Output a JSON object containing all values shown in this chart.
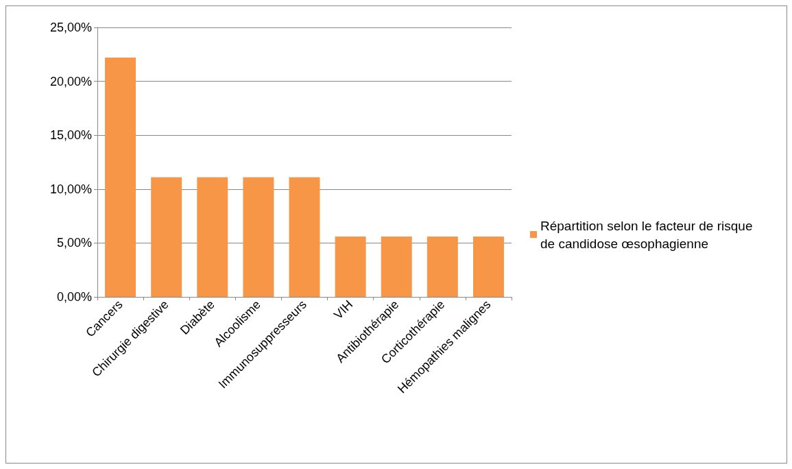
{
  "chart_data": {
    "type": "bar",
    "categories": [
      "Cancers",
      "Chirurgie digestive",
      "Diabète",
      "Alcoolisme",
      "Immunosuppresseurs",
      "VIH",
      "Antibiothérapie",
      "Corticothérapie",
      "Hémopathies malignes"
    ],
    "series": [
      {
        "name": "Répartition selon le facteur de risque de candidose œsophagienne",
        "color": "#f79646",
        "values": [
          22.2,
          11.1,
          11.1,
          11.1,
          11.1,
          5.6,
          5.6,
          5.6,
          5.6
        ]
      }
    ],
    "ylim": [
      0,
      25
    ],
    "yticks": [
      {
        "value": 0,
        "label": "0,00%"
      },
      {
        "value": 5,
        "label": "5,00%"
      },
      {
        "value": 10,
        "label": "10,00%"
      },
      {
        "value": 15,
        "label": "15,00%"
      },
      {
        "value": 20,
        "label": "20,00%"
      },
      {
        "value": 25,
        "label": "25,00%"
      }
    ],
    "grid": "y",
    "legend": "right"
  }
}
